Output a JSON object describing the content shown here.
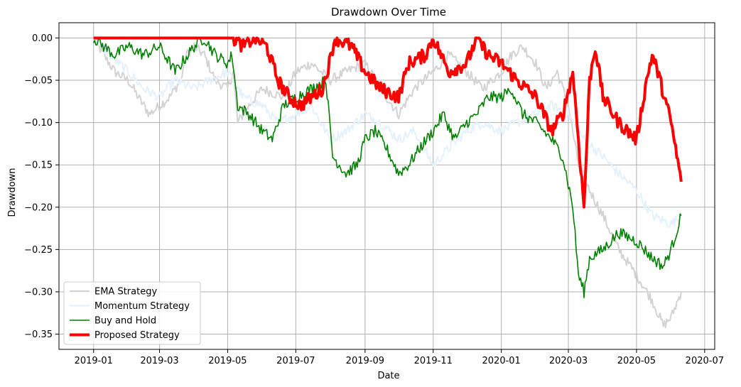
{
  "chart_data": {
    "type": "line",
    "title": "Drawdown Over Time",
    "xlabel": "Date",
    "ylabel": "Drawdown",
    "xlim": [
      "2018-12-01",
      "2020-07-10"
    ],
    "ylim": [
      -0.368,
      0.018
    ],
    "x_ticks": [
      "2019-01",
      "2019-03",
      "2019-05",
      "2019-07",
      "2019-09",
      "2019-11",
      "2020-01",
      "2020-03",
      "2020-05",
      "2020-07"
    ],
    "y_ticks": [
      0.0,
      -0.05,
      -0.1,
      -0.15,
      -0.2,
      -0.25,
      -0.3,
      -0.35
    ],
    "y_tick_labels": [
      "0.00",
      "−0.05",
      "−0.10",
      "−0.15",
      "−0.20",
      "−0.25",
      "−0.30",
      "−0.35"
    ],
    "grid": true,
    "legend_position": "lower-left",
    "series": [
      {
        "name": "EMA Strategy",
        "color": "#d3d3d3",
        "width": 2,
        "noise": 0.006,
        "points": [
          [
            "2019-01-01",
            0
          ],
          [
            "2019-01-10",
            -0.02
          ],
          [
            "2019-01-20",
            -0.04
          ],
          [
            "2019-02-01",
            -0.05
          ],
          [
            "2019-02-10",
            -0.07
          ],
          [
            "2019-02-20",
            -0.09
          ],
          [
            "2019-03-01",
            -0.08
          ],
          [
            "2019-03-10",
            -0.07
          ],
          [
            "2019-03-20",
            -0.05
          ],
          [
            "2019-03-25",
            -0.02
          ],
          [
            "2019-04-01",
            -0.01
          ],
          [
            "2019-04-10",
            -0.02
          ],
          [
            "2019-04-20",
            -0.05
          ],
          [
            "2019-05-01",
            -0.06
          ],
          [
            "2019-05-06",
            -0.04
          ],
          [
            "2019-05-10",
            -0.1
          ],
          [
            "2019-05-20",
            -0.08
          ],
          [
            "2019-06-01",
            -0.06
          ],
          [
            "2019-06-20",
            -0.07
          ],
          [
            "2019-07-01",
            -0.04
          ],
          [
            "2019-07-15",
            -0.03
          ],
          [
            "2019-08-01",
            -0.05
          ],
          [
            "2019-08-15",
            -0.04
          ],
          [
            "2019-09-01",
            -0.03
          ],
          [
            "2019-09-15",
            -0.06
          ],
          [
            "2019-10-01",
            -0.09
          ],
          [
            "2019-10-15",
            -0.06
          ],
          [
            "2019-11-01",
            -0.04
          ],
          [
            "2019-11-15",
            -0.02
          ],
          [
            "2019-12-01",
            -0.04
          ],
          [
            "2019-12-15",
            -0.06
          ],
          [
            "2020-01-01",
            -0.04
          ],
          [
            "2020-01-10",
            -0.02
          ],
          [
            "2020-01-20",
            -0.01
          ],
          [
            "2020-02-01",
            -0.03
          ],
          [
            "2020-02-10",
            -0.06
          ],
          [
            "2020-02-20",
            -0.04
          ],
          [
            "2020-03-01",
            -0.08
          ],
          [
            "2020-03-10",
            -0.15
          ],
          [
            "2020-03-20",
            -0.18
          ],
          [
            "2020-04-01",
            -0.21
          ],
          [
            "2020-04-15",
            -0.25
          ],
          [
            "2020-05-01",
            -0.28
          ],
          [
            "2020-05-15",
            -0.31
          ],
          [
            "2020-05-25",
            -0.34
          ],
          [
            "2020-06-01",
            -0.33
          ],
          [
            "2020-06-10",
            -0.3
          ]
        ]
      },
      {
        "name": "Momentum Strategy",
        "color": "#e6f2fb",
        "width": 2,
        "noise": 0.006,
        "points": [
          [
            "2019-01-01",
            0
          ],
          [
            "2019-01-15",
            -0.02
          ],
          [
            "2019-02-01",
            -0.04
          ],
          [
            "2019-02-15",
            -0.06
          ],
          [
            "2019-03-01",
            -0.07
          ],
          [
            "2019-03-15",
            -0.05
          ],
          [
            "2019-04-01",
            -0.06
          ],
          [
            "2019-04-15",
            -0.05
          ],
          [
            "2019-05-01",
            -0.04
          ],
          [
            "2019-05-15",
            -0.07
          ],
          [
            "2019-06-01",
            -0.08
          ],
          [
            "2019-06-15",
            -0.1
          ],
          [
            "2019-07-01",
            -0.09
          ],
          [
            "2019-07-15",
            -0.08
          ],
          [
            "2019-08-01",
            -0.12
          ],
          [
            "2019-08-15",
            -0.11
          ],
          [
            "2019-09-01",
            -0.09
          ],
          [
            "2019-09-15",
            -0.1
          ],
          [
            "2019-10-01",
            -0.12
          ],
          [
            "2019-10-15",
            -0.11
          ],
          [
            "2019-11-01",
            -0.15
          ],
          [
            "2019-11-15",
            -0.13
          ],
          [
            "2019-12-01",
            -0.11
          ],
          [
            "2019-12-15",
            -0.1
          ],
          [
            "2020-01-01",
            -0.11
          ],
          [
            "2020-01-15",
            -0.1
          ],
          [
            "2020-02-01",
            -0.09
          ],
          [
            "2020-02-15",
            -0.08
          ],
          [
            "2020-03-01",
            -0.09
          ],
          [
            "2020-03-15",
            -0.12
          ],
          [
            "2020-04-01",
            -0.14
          ],
          [
            "2020-04-15",
            -0.16
          ],
          [
            "2020-05-01",
            -0.18
          ],
          [
            "2020-05-15",
            -0.21
          ],
          [
            "2020-06-01",
            -0.22
          ],
          [
            "2020-06-10",
            -0.21
          ]
        ]
      },
      {
        "name": "Buy and Hold",
        "color": "#008000",
        "width": 1.6,
        "noise": 0.007,
        "points": [
          [
            "2019-01-01",
            0
          ],
          [
            "2019-01-10",
            -0.01
          ],
          [
            "2019-01-20",
            -0.02
          ],
          [
            "2019-02-01",
            -0.01
          ],
          [
            "2019-02-15",
            -0.02
          ],
          [
            "2019-03-01",
            -0.01
          ],
          [
            "2019-03-15",
            -0.04
          ],
          [
            "2019-04-01",
            -0.01
          ],
          [
            "2019-04-10",
            0
          ],
          [
            "2019-04-20",
            -0.02
          ],
          [
            "2019-05-01",
            -0.03
          ],
          [
            "2019-05-05",
            -0.02
          ],
          [
            "2019-05-10",
            -0.08
          ],
          [
            "2019-05-20",
            -0.09
          ],
          [
            "2019-06-01",
            -0.11
          ],
          [
            "2019-06-10",
            -0.12
          ],
          [
            "2019-06-20",
            -0.08
          ],
          [
            "2019-07-01",
            -0.07
          ],
          [
            "2019-07-15",
            -0.06
          ],
          [
            "2019-07-28",
            -0.05
          ],
          [
            "2019-08-03",
            -0.14
          ],
          [
            "2019-08-15",
            -0.16
          ],
          [
            "2019-08-25",
            -0.15
          ],
          [
            "2019-09-01",
            -0.12
          ],
          [
            "2019-09-10",
            -0.11
          ],
          [
            "2019-09-20",
            -0.13
          ],
          [
            "2019-10-01",
            -0.16
          ],
          [
            "2019-10-10",
            -0.15
          ],
          [
            "2019-10-20",
            -0.13
          ],
          [
            "2019-11-01",
            -0.11
          ],
          [
            "2019-11-10",
            -0.09
          ],
          [
            "2019-11-20",
            -0.12
          ],
          [
            "2019-12-01",
            -0.1
          ],
          [
            "2019-12-10",
            -0.09
          ],
          [
            "2019-12-20",
            -0.07
          ],
          [
            "2020-01-01",
            -0.07
          ],
          [
            "2020-01-10",
            -0.06
          ],
          [
            "2020-01-20",
            -0.09
          ],
          [
            "2020-02-01",
            -0.1
          ],
          [
            "2020-02-15",
            -0.12
          ],
          [
            "2020-02-25",
            -0.14
          ],
          [
            "2020-03-05",
            -0.2
          ],
          [
            "2020-03-10",
            -0.28
          ],
          [
            "2020-03-15",
            -0.3
          ],
          [
            "2020-03-20",
            -0.26
          ],
          [
            "2020-04-01",
            -0.25
          ],
          [
            "2020-04-15",
            -0.23
          ],
          [
            "2020-05-01",
            -0.24
          ],
          [
            "2020-05-15",
            -0.26
          ],
          [
            "2020-05-25",
            -0.27
          ],
          [
            "2020-06-01",
            -0.25
          ],
          [
            "2020-06-10",
            -0.21
          ]
        ]
      },
      {
        "name": "Proposed Strategy",
        "color": "#ff0000",
        "width": 4,
        "noise": 0.008,
        "points": [
          [
            "2019-01-01",
            0
          ],
          [
            "2019-05-06",
            0
          ],
          [
            "2019-05-15",
            -0.01
          ],
          [
            "2019-05-25",
            0
          ],
          [
            "2019-06-05",
            -0.01
          ],
          [
            "2019-06-15",
            -0.05
          ],
          [
            "2019-06-25",
            -0.07
          ],
          [
            "2019-07-05",
            -0.08
          ],
          [
            "2019-07-15",
            -0.07
          ],
          [
            "2019-07-25",
            -0.06
          ],
          [
            "2019-07-31",
            -0.03
          ],
          [
            "2019-08-05",
            0
          ],
          [
            "2019-08-20",
            -0.01
          ],
          [
            "2019-09-01",
            -0.04
          ],
          [
            "2019-09-15",
            -0.06
          ],
          [
            "2019-10-01",
            -0.07
          ],
          [
            "2019-10-10",
            -0.03
          ],
          [
            "2019-10-25",
            -0.02
          ],
          [
            "2019-11-01",
            0
          ],
          [
            "2019-11-15",
            -0.04
          ],
          [
            "2019-12-01",
            -0.03
          ],
          [
            "2019-12-10",
            0
          ],
          [
            "2019-12-20",
            -0.02
          ],
          [
            "2020-01-01",
            -0.03
          ],
          [
            "2020-01-15",
            -0.05
          ],
          [
            "2020-02-01",
            -0.07
          ],
          [
            "2020-02-15",
            -0.11
          ],
          [
            "2020-02-25",
            -0.09
          ],
          [
            "2020-03-05",
            -0.04
          ],
          [
            "2020-03-10",
            -0.12
          ],
          [
            "2020-03-15",
            -0.2
          ],
          [
            "2020-03-20",
            -0.05
          ],
          [
            "2020-03-25",
            -0.01
          ],
          [
            "2020-04-01",
            -0.07
          ],
          [
            "2020-04-15",
            -0.1
          ],
          [
            "2020-05-01",
            -0.12
          ],
          [
            "2020-05-10",
            -0.05
          ],
          [
            "2020-05-15",
            -0.02
          ],
          [
            "2020-05-20",
            -0.04
          ],
          [
            "2020-06-01",
            -0.1
          ],
          [
            "2020-06-10",
            -0.17
          ]
        ]
      }
    ]
  }
}
